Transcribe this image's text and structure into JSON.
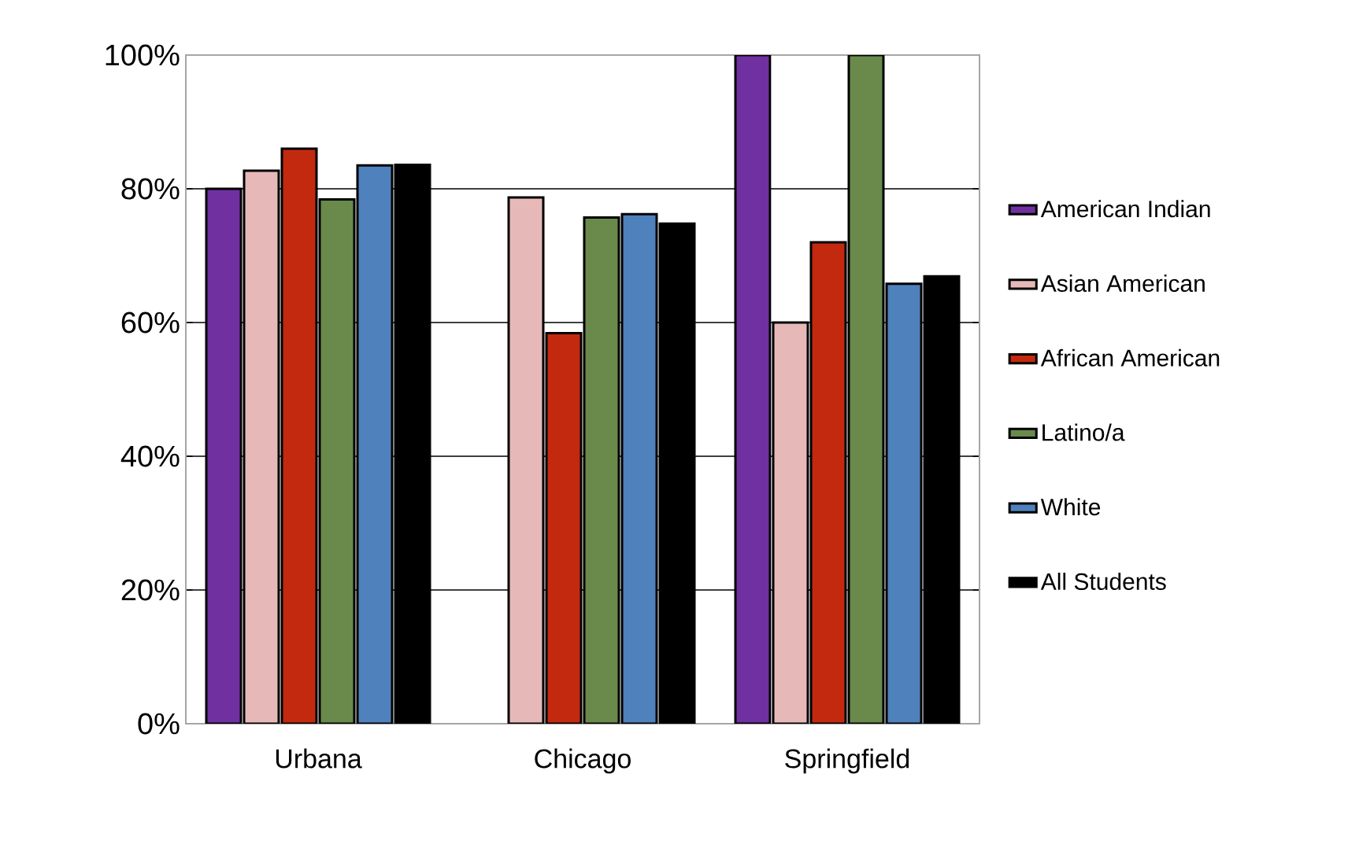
{
  "chart_data": {
    "type": "bar",
    "categories": [
      "Urbana",
      "Chicago",
      "Springfield"
    ],
    "series": [
      {
        "name": "American Indian",
        "color": "#7030a0",
        "values": [
          80,
          null,
          100
        ]
      },
      {
        "name": "Asian American",
        "color": "#e6b9b8",
        "values": [
          82.7,
          78.7,
          60
        ]
      },
      {
        "name": "African American",
        "color": "#c3290f",
        "values": [
          86,
          58.4,
          72
        ]
      },
      {
        "name": "Latino/a",
        "color": "#6a8a4c",
        "values": [
          78.4,
          75.7,
          100
        ]
      },
      {
        "name": "White",
        "color": "#4f81bd",
        "values": [
          83.5,
          76.2,
          65.8
        ]
      },
      {
        "name": "All Students",
        "color": "#000000",
        "values": [
          83.6,
          74.8,
          66.9
        ]
      }
    ],
    "ylim": [
      0,
      100
    ],
    "yticks": [
      {
        "value": 0,
        "label": "0%"
      },
      {
        "value": 20,
        "label": "20%"
      },
      {
        "value": 40,
        "label": "40%"
      },
      {
        "value": 60,
        "label": "60%"
      },
      {
        "value": 80,
        "label": "80%"
      },
      {
        "value": 100,
        "label": "100%"
      }
    ],
    "grid": "y",
    "legend": "right"
  }
}
